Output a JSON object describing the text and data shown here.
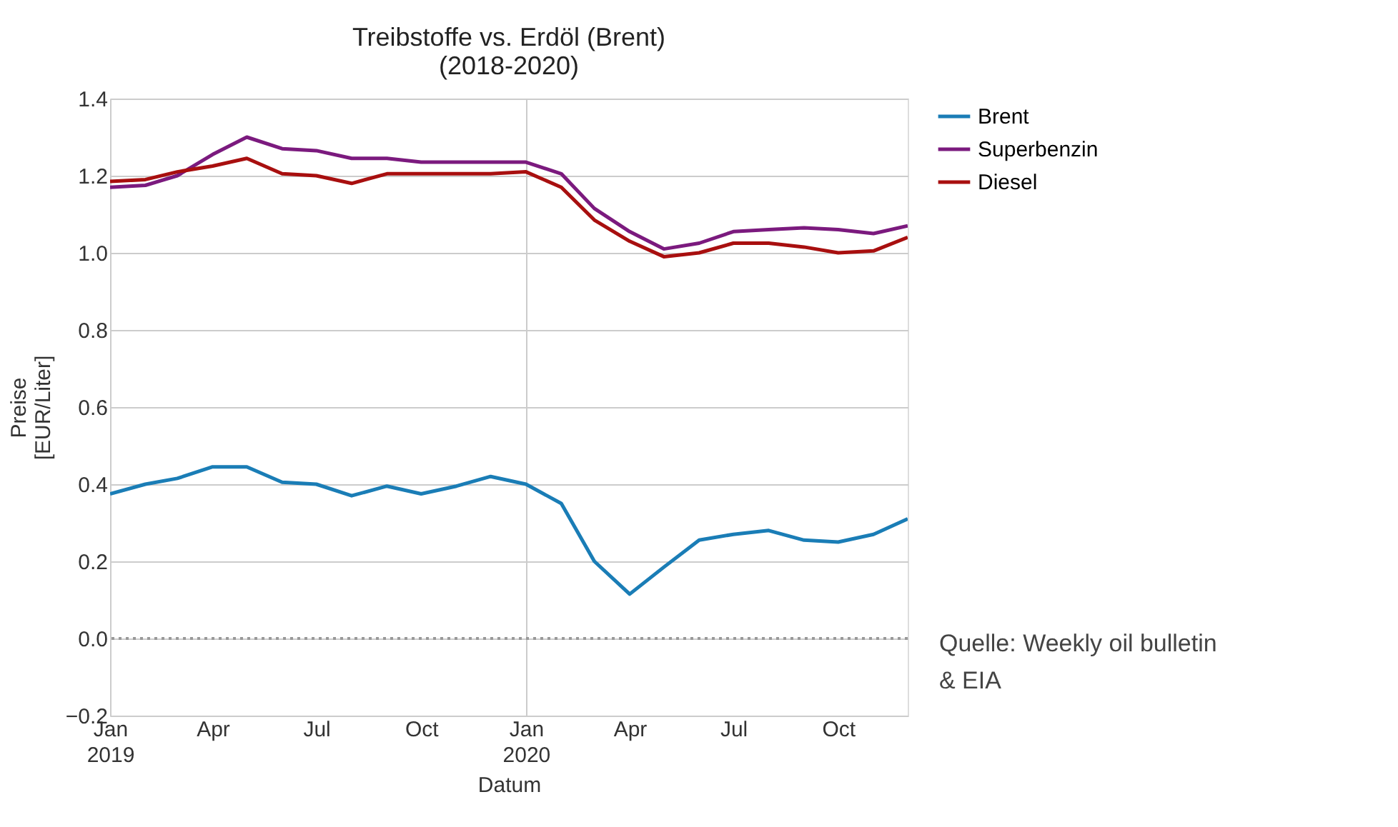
{
  "chart_data": {
    "type": "line",
    "title": "Treibstoffe vs. Erdöl (Brent)\n(2018-2020)",
    "xlabel": "Datum",
    "ylabel": "Preise\n[EUR/Liter]",
    "x": [
      "2019-01",
      "2019-02",
      "2019-03",
      "2019-04",
      "2019-05",
      "2019-06",
      "2019-07",
      "2019-08",
      "2019-09",
      "2019-10",
      "2019-11",
      "2019-12",
      "2020-01",
      "2020-02",
      "2020-03",
      "2020-04",
      "2020-05",
      "2020-06",
      "2020-07",
      "2020-08",
      "2020-09",
      "2020-10",
      "2020-11",
      "2020-12"
    ],
    "series": [
      {
        "name": "Brent",
        "color": "#1a7db6",
        "values": [
          0.375,
          0.4,
          0.415,
          0.445,
          0.445,
          0.405,
          0.4,
          0.37,
          0.395,
          0.375,
          0.395,
          0.42,
          0.4,
          0.35,
          0.2,
          0.115,
          0.185,
          0.255,
          0.27,
          0.28,
          0.255,
          0.25,
          0.27,
          0.31
        ]
      },
      {
        "name": "Superbenzin",
        "color": "#7b1a7e",
        "values": [
          1.17,
          1.175,
          1.2,
          1.255,
          1.3,
          1.27,
          1.265,
          1.245,
          1.245,
          1.235,
          1.235,
          1.235,
          1.235,
          1.205,
          1.115,
          1.055,
          1.01,
          1.025,
          1.055,
          1.06,
          1.065,
          1.06,
          1.05,
          1.07
        ]
      },
      {
        "name": "Diesel",
        "color": "#a80f0f",
        "values": [
          1.185,
          1.19,
          1.21,
          1.225,
          1.245,
          1.205,
          1.2,
          1.18,
          1.205,
          1.205,
          1.205,
          1.205,
          1.21,
          1.17,
          1.085,
          1.03,
          0.99,
          1.0,
          1.025,
          1.025,
          1.015,
          1.0,
          1.005,
          1.04
        ]
      }
    ],
    "xlim": [
      "2019-01",
      "2020-12"
    ],
    "xticks": [
      {
        "value": "2019-01",
        "label": "Jan\n2019"
      },
      {
        "value": "2019-04",
        "label": "Apr"
      },
      {
        "value": "2019-07",
        "label": "Jul"
      },
      {
        "value": "2019-10",
        "label": "Oct"
      },
      {
        "value": "2020-01",
        "label": "Jan\n2020"
      },
      {
        "value": "2020-04",
        "label": "Apr"
      },
      {
        "value": "2020-07",
        "label": "Jul"
      },
      {
        "value": "2020-10",
        "label": "Oct"
      }
    ],
    "ylim": [
      -0.2,
      1.4
    ],
    "yticks": [
      {
        "value": -0.2,
        "label": "−0.2"
      },
      {
        "value": 0,
        "label": "0.0"
      },
      {
        "value": 0.2,
        "label": "0.2"
      },
      {
        "value": 0.4,
        "label": "0.4"
      },
      {
        "value": 0.6,
        "label": "0.6"
      },
      {
        "value": 0.8,
        "label": "0.8"
      },
      {
        "value": 1.0,
        "label": "1.0"
      },
      {
        "value": 1.2,
        "label": "1.2"
      },
      {
        "value": 1.4,
        "label": "1.4"
      }
    ],
    "ref_lines": [
      {
        "axis": "y",
        "value": 0,
        "color": "#999999",
        "line_style": "dotted"
      }
    ],
    "grid": true,
    "legend": "top right",
    "line_style": "solid",
    "marker": "none",
    "annotations": [
      "Quelle: Weekly oil bulletin\n & EIA"
    ]
  }
}
